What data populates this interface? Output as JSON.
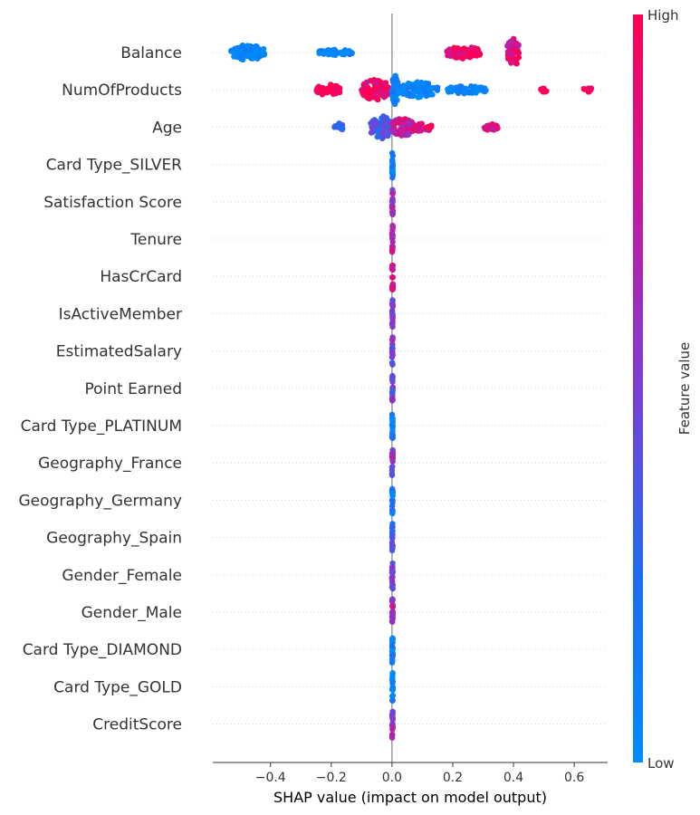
{
  "chart_data": {
    "type": "scatter",
    "subtype": "shap-beeswarm",
    "title": "",
    "xlabel": "SHAP value (impact on model output)",
    "xlim": [
      -0.59,
      0.71
    ],
    "xticks": [
      -0.4,
      -0.2,
      0.0,
      0.2,
      0.4,
      0.6
    ],
    "xtick_labels": [
      "−0.4",
      "−0.2",
      "0.0",
      "0.2",
      "0.4",
      "0.6"
    ],
    "colorbar": {
      "label": "Feature value",
      "high_label": "High",
      "low_label": "Low",
      "low_color": "#008bfb",
      "high_color": "#ff0052"
    },
    "features": [
      {
        "name": "Balance",
        "clusters": [
          {
            "x": -0.53,
            "x2": -0.42,
            "width": 0.5,
            "value": 0.0,
            "density": 1.0
          },
          {
            "x": -0.24,
            "x2": -0.13,
            "width": 0.2,
            "value": 0.0,
            "density": 0.5
          },
          {
            "x": 0.18,
            "x2": 0.29,
            "width": 0.4,
            "value": 0.9,
            "density": 0.8
          },
          {
            "x": 0.38,
            "x2": 0.42,
            "width": 0.95,
            "value": 0.85,
            "density": 1.0
          }
        ]
      },
      {
        "name": "NumOfProducts",
        "clusters": [
          {
            "x": -0.25,
            "x2": -0.17,
            "width": 0.35,
            "value": 1.0,
            "density": 0.6
          },
          {
            "x": -0.1,
            "x2": -0.01,
            "width": 0.7,
            "value": 0.95,
            "density": 1.0
          },
          {
            "x": 0.0,
            "x2": 0.02,
            "width": 0.95,
            "value": 0.1,
            "density": 1.0
          },
          {
            "x": 0.02,
            "x2": 0.15,
            "width": 0.5,
            "value": 0.05,
            "density": 0.7
          },
          {
            "x": 0.18,
            "x2": 0.31,
            "width": 0.25,
            "value": 0.02,
            "density": 0.5
          },
          {
            "x": 0.49,
            "x2": 0.51,
            "width": 0.15,
            "value": 1.0,
            "density": 0.3
          },
          {
            "x": 0.63,
            "x2": 0.66,
            "width": 0.15,
            "value": 1.0,
            "density": 0.3
          }
        ]
      },
      {
        "name": "Age",
        "clusters": [
          {
            "x": -0.19,
            "x2": -0.16,
            "width": 0.25,
            "value": 0.35,
            "density": 0.5
          },
          {
            "x": -0.07,
            "x2": 0.0,
            "width": 0.75,
            "value": 0.35,
            "density": 1.0
          },
          {
            "x": 0.0,
            "x2": 0.07,
            "width": 0.6,
            "value": 0.75,
            "density": 1.0
          },
          {
            "x": 0.07,
            "x2": 0.13,
            "width": 0.3,
            "value": 0.85,
            "density": 0.5
          },
          {
            "x": 0.3,
            "x2": 0.35,
            "width": 0.2,
            "value": 0.9,
            "density": 0.4
          }
        ]
      },
      {
        "name": "Card Type_SILVER",
        "clusters": [
          {
            "x": 0.0,
            "x2": 0.0,
            "width": 0.9,
            "value": 0.1,
            "density": 1.0
          }
        ]
      },
      {
        "name": "Satisfaction Score",
        "clusters": [
          {
            "x": 0.0,
            "x2": 0.0,
            "width": 0.9,
            "value": 0.6,
            "density": 1.0
          }
        ]
      },
      {
        "name": "Tenure",
        "clusters": [
          {
            "x": 0.0,
            "x2": 0.0,
            "width": 0.9,
            "value": 0.75,
            "density": 1.0
          }
        ]
      },
      {
        "name": "HasCrCard",
        "clusters": [
          {
            "x": 0.0,
            "x2": 0.0,
            "width": 0.9,
            "value": 0.85,
            "density": 1.0
          }
        ]
      },
      {
        "name": "IsActiveMember",
        "clusters": [
          {
            "x": 0.0,
            "x2": 0.0,
            "width": 0.9,
            "value": 0.55,
            "density": 1.0
          }
        ]
      },
      {
        "name": "EstimatedSalary",
        "clusters": [
          {
            "x": 0.0,
            "x2": 0.0,
            "width": 0.9,
            "value": 0.5,
            "density": 1.0
          }
        ]
      },
      {
        "name": "Point Earned",
        "clusters": [
          {
            "x": 0.0,
            "x2": 0.0,
            "width": 0.9,
            "value": 0.5,
            "density": 1.0
          }
        ]
      },
      {
        "name": "Card Type_PLATINUM",
        "clusters": [
          {
            "x": 0.0,
            "x2": 0.0,
            "width": 0.9,
            "value": 0.15,
            "density": 1.0
          }
        ]
      },
      {
        "name": "Geography_France",
        "clusters": [
          {
            "x": 0.0,
            "x2": 0.0,
            "width": 0.9,
            "value": 0.55,
            "density": 1.0
          }
        ]
      },
      {
        "name": "Geography_Germany",
        "clusters": [
          {
            "x": 0.0,
            "x2": 0.0,
            "width": 0.9,
            "value": 0.12,
            "density": 1.0
          }
        ]
      },
      {
        "name": "Geography_Spain",
        "clusters": [
          {
            "x": 0.0,
            "x2": 0.0,
            "width": 0.9,
            "value": 0.3,
            "density": 1.0
          }
        ]
      },
      {
        "name": "Gender_Female",
        "clusters": [
          {
            "x": 0.0,
            "x2": 0.0,
            "width": 0.9,
            "value": 0.45,
            "density": 1.0
          }
        ]
      },
      {
        "name": "Gender_Male",
        "clusters": [
          {
            "x": 0.0,
            "x2": 0.0,
            "width": 0.9,
            "value": 0.65,
            "density": 1.0
          }
        ]
      },
      {
        "name": "Card Type_DIAMOND",
        "clusters": [
          {
            "x": 0.0,
            "x2": 0.0,
            "width": 0.9,
            "value": 0.08,
            "density": 1.0
          }
        ]
      },
      {
        "name": "Card Type_GOLD",
        "clusters": [
          {
            "x": 0.0,
            "x2": 0.0,
            "width": 0.9,
            "value": 0.08,
            "density": 1.0
          }
        ]
      },
      {
        "name": "CreditScore",
        "clusters": [
          {
            "x": 0.0,
            "x2": 0.0,
            "width": 0.9,
            "value": 0.6,
            "density": 1.0
          }
        ]
      }
    ]
  }
}
